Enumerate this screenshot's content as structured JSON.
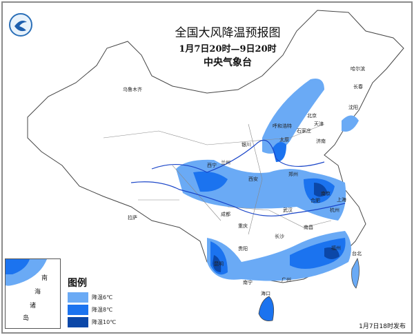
{
  "header": {
    "title": "全国大风降温预报图",
    "period": "1月7日20时—9日20时",
    "issuer": "中央气象台"
  },
  "logo_icon": "cma-logo",
  "legend": {
    "title": "图例",
    "items": [
      {
        "label": "降温6℃",
        "color": "#6aaaf5"
      },
      {
        "label": "降温8℃",
        "color": "#1b73ef"
      },
      {
        "label": "降温10℃",
        "color": "#0b47a8"
      }
    ]
  },
  "cities": [
    "乌鲁木齐",
    "哈尔滨",
    "长春",
    "沈阳",
    "北京",
    "天津",
    "呼和浩特",
    "石家庄",
    "太原",
    "济南",
    "银川",
    "兰州",
    "西宁",
    "西安",
    "郑州",
    "南京",
    "合肥",
    "上海",
    "杭州",
    "武汉",
    "拉萨",
    "成都",
    "重庆",
    "长沙",
    "南昌",
    "福州",
    "贵阳",
    "昆明",
    "南宁",
    "广州",
    "台北",
    "海口"
  ],
  "inset": {
    "labels": [
      "南",
      "海",
      "诸",
      "岛"
    ]
  },
  "issued": "1月7日18时发布"
}
